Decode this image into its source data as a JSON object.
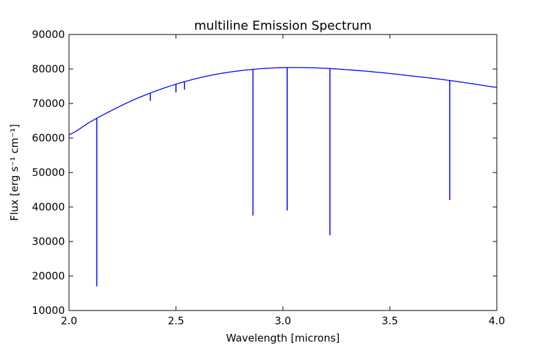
{
  "chart_data": {
    "type": "line",
    "title": "multiline Emission Spectrum",
    "xlabel": "Wavelength  [microns]",
    "ylabel": "Flux  [erg s⁻¹ cm⁻¹]",
    "xlim": [
      2.0,
      4.0
    ],
    "ylim": [
      10000,
      90000
    ],
    "grid": false,
    "x_ticks": [
      "2.0",
      "2.5",
      "3.0",
      "3.5",
      "4.0"
    ],
    "y_ticks": [
      "10000",
      "20000",
      "30000",
      "40000",
      "50000",
      "60000",
      "70000",
      "80000",
      "90000"
    ],
    "series": [
      {
        "color": "#0000ff",
        "continuum": {
          "x": [
            2.0,
            2.1,
            2.2,
            2.3,
            2.4,
            2.5,
            2.6,
            2.7,
            2.8,
            2.9,
            3.0,
            3.1,
            3.2,
            3.3,
            3.4,
            3.5,
            3.6,
            3.7,
            3.8,
            3.9,
            4.0
          ],
          "y": [
            61000,
            64700,
            68000,
            71000,
            73500,
            75600,
            77300,
            78600,
            79500,
            80100,
            80400,
            80400,
            80200,
            79800,
            79300,
            78700,
            78000,
            77300,
            76500,
            75600,
            74700
          ]
        },
        "lines": [
          {
            "x": 2.13,
            "y_min": 17000
          },
          {
            "x": 2.29,
            "y_min": 70800
          },
          {
            "x": 2.38,
            "y_min": 70800
          },
          {
            "x": 2.5,
            "y_min": 73200
          },
          {
            "x": 2.54,
            "y_min": 74000
          },
          {
            "x": 2.86,
            "y_min": 37500
          },
          {
            "x": 3.02,
            "y_min": 39000
          },
          {
            "x": 3.22,
            "y_min": 31800
          },
          {
            "x": 3.78,
            "y_min": 42000
          }
        ]
      }
    ]
  }
}
